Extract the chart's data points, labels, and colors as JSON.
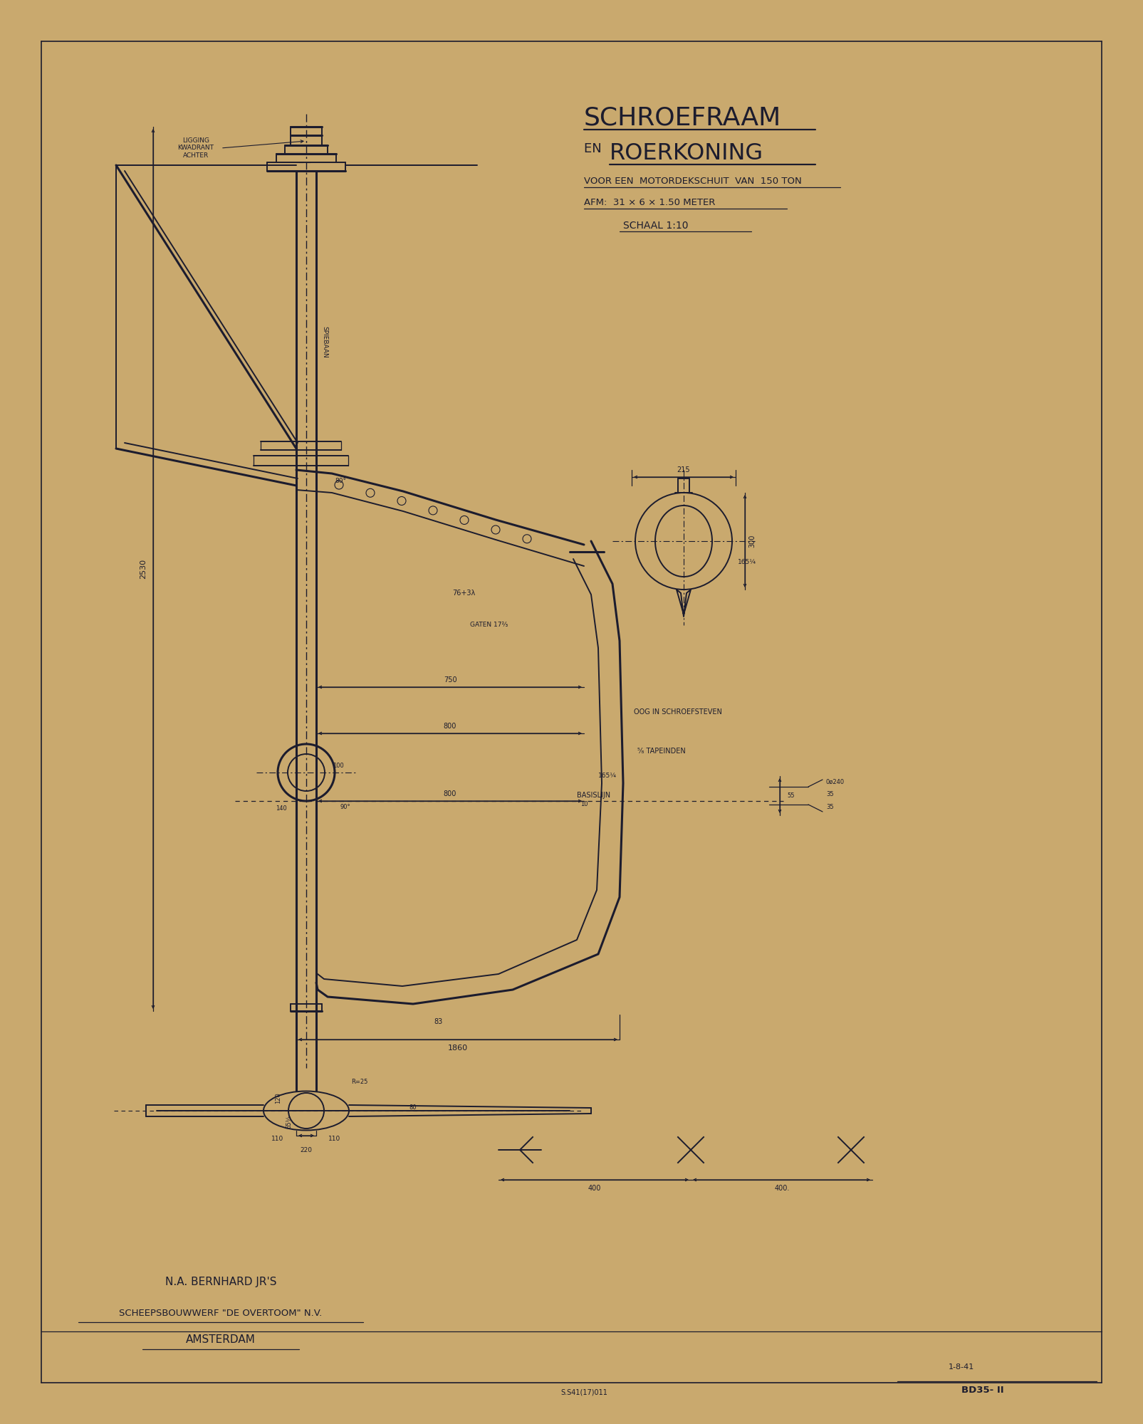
{
  "bg_color": "#C9A96E",
  "line_color": "#1C1C2E",
  "title1": "SCHROEFRAAM",
  "title2_en": "EN ",
  "title2_main": "ROERKONING",
  "subtitle1a": "VOOR EEN ",
  "subtitle1b": "MOTORDEKSCHUIT",
  "subtitle1c": " VAN ",
  "subtitle1d": "150 TON",
  "subtitle2": "AFM:  31 × 6 × 1.50 METER",
  "subtitle3": "SCHAAL 1:10",
  "company1": "N.A. BERNHARD JR'S",
  "company2": "SCHEEPSBOUWWERF „DE OVERTOOM” N.V.",
  "company3": "AMSTERDAM",
  "date": "1-8-41",
  "ref1": "S.S41(17)011",
  "ref2": "BD35- II"
}
